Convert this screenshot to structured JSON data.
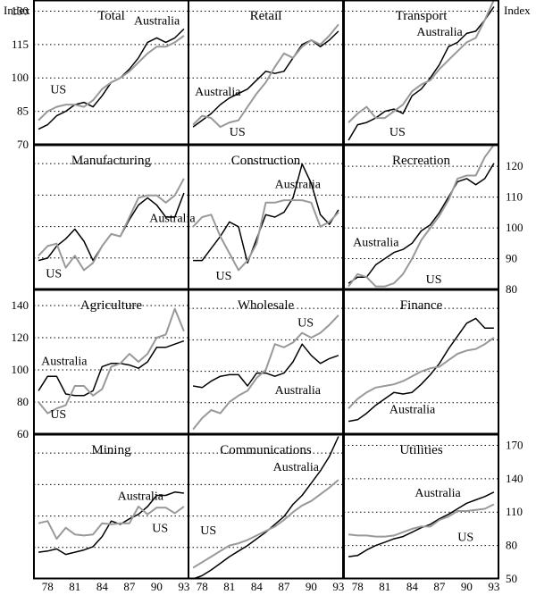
{
  "page": {
    "left_axis_label": "Index",
    "right_axis_label": "Index"
  },
  "colors": {
    "australia": "#000000",
    "us": "#999999",
    "grid": "#000000",
    "frame": "#000000"
  },
  "x_ticks": [
    "78",
    "81",
    "84",
    "87",
    "90",
    "93"
  ],
  "years": [
    1977,
    1978,
    1979,
    1980,
    1981,
    1982,
    1983,
    1984,
    1985,
    1986,
    1987,
    1988,
    1989,
    1990,
    1991,
    1992,
    1993
  ],
  "chart_data": [
    {
      "type": "line",
      "title": "Total",
      "ylim": [
        70,
        135
      ],
      "ticks": [
        70,
        85,
        100,
        115,
        130
      ],
      "tick_side": "left",
      "series": [
        {
          "name": "Australia",
          "values": [
            77,
            79,
            83,
            85,
            88,
            89,
            87,
            92,
            98,
            100,
            104,
            109,
            116,
            118,
            116,
            118,
            122
          ]
        },
        {
          "name": "US",
          "values": [
            81,
            85,
            87,
            88,
            88,
            87,
            90,
            95,
            98,
            100,
            103,
            107,
            111,
            114,
            114,
            116,
            119
          ]
        }
      ],
      "annotations": [
        {
          "text": "Australia",
          "x": 1987.5,
          "y": 124
        },
        {
          "text": "US",
          "x": 1978.3,
          "y": 93
        }
      ]
    },
    {
      "type": "line",
      "title": "Retail",
      "ylim": [
        70,
        135
      ],
      "ticks": [
        70,
        85,
        100,
        115,
        130
      ],
      "tick_side": "none",
      "series": [
        {
          "name": "Australia",
          "values": [
            78,
            81,
            84,
            88,
            91,
            93,
            95,
            99,
            103,
            102,
            103,
            109,
            115,
            117,
            114,
            117,
            121
          ]
        },
        {
          "name": "US",
          "values": [
            79,
            83,
            82,
            78,
            80,
            81,
            87,
            93,
            98,
            105,
            111,
            109,
            114,
            117,
            115,
            119,
            124
          ]
        }
      ],
      "annotations": [
        {
          "text": "Australia",
          "x": 1977.2,
          "y": 92
        },
        {
          "text": "US",
          "x": 1981,
          "y": 74
        }
      ]
    },
    {
      "type": "line",
      "title": "Transport",
      "ylim": [
        70,
        135
      ],
      "ticks": [
        70,
        85,
        100,
        115,
        130
      ],
      "tick_side": "none",
      "series": [
        {
          "name": "Australia",
          "values": [
            72,
            79,
            80,
            82,
            85,
            86,
            84,
            92,
            95,
            100,
            106,
            114,
            116,
            120,
            121,
            126,
            132
          ]
        },
        {
          "name": "US",
          "values": [
            80,
            84,
            87,
            82,
            82,
            85,
            88,
            94,
            97,
            99,
            104,
            108,
            112,
            116,
            118,
            126,
            135
          ]
        }
      ],
      "annotations": [
        {
          "text": "Australia",
          "x": 1984.5,
          "y": 119
        },
        {
          "text": "US",
          "x": 1981.5,
          "y": 74
        }
      ]
    },
    {
      "type": "line",
      "title": "Manufacturing",
      "ylim": [
        75,
        135
      ],
      "ticks": [],
      "tick_side": "none",
      "series": [
        {
          "name": "Australia",
          "values": [
            87,
            88,
            93,
            96,
            100,
            95,
            87,
            93,
            98,
            97,
            104,
            110,
            113,
            110,
            105,
            105,
            115
          ]
        },
        {
          "name": "US",
          "values": [
            89,
            93,
            94,
            84,
            89,
            83,
            86,
            93,
            98,
            97,
            105,
            113,
            114,
            114,
            111,
            114,
            121
          ]
        }
      ],
      "annotations": [
        {
          "text": "Australia",
          "x": 1989.2,
          "y": 103
        },
        {
          "text": "US",
          "x": 1977.8,
          "y": 80
        }
      ]
    },
    {
      "type": "line",
      "title": "Construction",
      "ylim": [
        75,
        135
      ],
      "ticks": [],
      "tick_side": "none",
      "series": [
        {
          "name": "Australia",
          "values": [
            87,
            87,
            92,
            97,
            103,
            101,
            86,
            96,
            106,
            105,
            107,
            113,
            127,
            119,
            106,
            102,
            108
          ]
        },
        {
          "name": "US",
          "values": [
            101,
            105,
            106,
            97,
            90,
            83,
            87,
            94,
            111,
            111,
            112,
            112,
            112,
            111,
            101,
            103,
            107
          ]
        }
      ],
      "annotations": [
        {
          "text": "Australia",
          "x": 1986,
          "y": 117
        },
        {
          "text": "US",
          "x": 1979.5,
          "y": 79
        }
      ]
    },
    {
      "type": "line",
      "title": "Recreation",
      "ylim": [
        80,
        127
      ],
      "ticks": [
        80,
        90,
        100,
        110,
        120
      ],
      "tick_side": "right",
      "series": [
        {
          "name": "Australia",
          "values": [
            82,
            84,
            84,
            88,
            90,
            92,
            93,
            95,
            99,
            101,
            105,
            110,
            115,
            116,
            114,
            116,
            121
          ]
        },
        {
          "name": "US",
          "values": [
            81,
            85,
            84,
            81,
            81,
            82,
            85,
            90,
            96,
            100,
            104,
            109,
            116,
            117,
            117,
            123,
            127
          ]
        }
      ],
      "annotations": [
        {
          "text": "Australia",
          "x": 1977.5,
          "y": 94
        },
        {
          "text": "US",
          "x": 1985.5,
          "y": 82
        }
      ]
    },
    {
      "type": "line",
      "title": "Agriculture",
      "ylim": [
        60,
        150
      ],
      "ticks": [
        60,
        80,
        100,
        120,
        140
      ],
      "tick_side": "left",
      "series": [
        {
          "name": "Australia",
          "values": [
            87,
            96,
            96,
            85,
            84,
            84,
            87,
            102,
            104,
            104,
            103,
            101,
            105,
            114,
            114,
            116,
            118
          ]
        },
        {
          "name": "US",
          "values": [
            80,
            73,
            76,
            78,
            90,
            90,
            84,
            88,
            102,
            104,
            110,
            105,
            110,
            120,
            122,
            138,
            124
          ]
        }
      ],
      "annotations": [
        {
          "text": "Australia",
          "x": 1977.3,
          "y": 103
        },
        {
          "text": "US",
          "x": 1978.3,
          "y": 70
        }
      ]
    },
    {
      "type": "line",
      "title": "Wholesale",
      "ylim": [
        60,
        150
      ],
      "ticks": [],
      "tick_side": "none",
      "series": [
        {
          "name": "Australia",
          "values": [
            90,
            89,
            93,
            96,
            97,
            97,
            90,
            98,
            98,
            96,
            98,
            105,
            116,
            109,
            104,
            107,
            109
          ]
        },
        {
          "name": "US",
          "values": [
            63,
            70,
            75,
            73,
            80,
            84,
            87,
            95,
            100,
            116,
            114,
            117,
            123,
            120,
            123,
            128,
            134
          ]
        }
      ],
      "annotations": [
        {
          "text": "Australia",
          "x": 1986,
          "y": 85
        },
        {
          "text": "US",
          "x": 1988.5,
          "y": 127
        }
      ]
    },
    {
      "type": "line",
      "title": "Finance",
      "ylim": [
        60,
        150
      ],
      "ticks": [],
      "tick_side": "none",
      "series": [
        {
          "name": "Australia",
          "values": [
            68,
            69,
            73,
            78,
            82,
            86,
            85,
            86,
            91,
            97,
            104,
            113,
            121,
            129,
            132,
            126,
            126
          ]
        },
        {
          "name": "US",
          "values": [
            76,
            82,
            86,
            89,
            90,
            91,
            93,
            96,
            99,
            101,
            102,
            106,
            110,
            112,
            113,
            116,
            120
          ]
        }
      ],
      "annotations": [
        {
          "text": "Australia",
          "x": 1981.5,
          "y": 73
        }
      ]
    },
    {
      "type": "line",
      "title": "Mining",
      "ylim": [
        50,
        180
      ],
      "ticks": [],
      "tick_side": "none",
      "series": [
        {
          "name": "Australia",
          "values": [
            74,
            75,
            77,
            72,
            74,
            76,
            79,
            88,
            102,
            99,
            104,
            108,
            115,
            125,
            125,
            128,
            127
          ]
        },
        {
          "name": "US",
          "values": [
            100,
            102,
            86,
            96,
            90,
            89,
            90,
            100,
            99,
            100,
            100,
            115,
            108,
            114,
            114,
            109,
            115
          ]
        }
      ],
      "annotations": [
        {
          "text": "Australia",
          "x": 1985.7,
          "y": 121
        },
        {
          "text": "US",
          "x": 1989.5,
          "y": 92
        }
      ]
    },
    {
      "type": "line",
      "title": "Communications",
      "ylim": [
        50,
        180
      ],
      "ticks": [],
      "tick_side": "none",
      "series": [
        {
          "name": "Australia",
          "values": [
            50,
            53,
            58,
            64,
            70,
            75,
            80,
            86,
            92,
            99,
            106,
            117,
            125,
            136,
            147,
            160,
            178
          ]
        },
        {
          "name": "US",
          "values": [
            60,
            65,
            70,
            75,
            80,
            82,
            85,
            89,
            93,
            97,
            103,
            110,
            116,
            120,
            126,
            132,
            139
          ]
        }
      ],
      "annotations": [
        {
          "text": "Australia",
          "x": 1985.8,
          "y": 147
        },
        {
          "text": "US",
          "x": 1977.8,
          "y": 90
        }
      ]
    },
    {
      "type": "line",
      "title": "Utilities",
      "ylim": [
        50,
        180
      ],
      "ticks": [
        50,
        80,
        110,
        140,
        170
      ],
      "tick_side": "right",
      "series": [
        {
          "name": "Australia",
          "values": [
            70,
            71,
            76,
            80,
            83,
            86,
            88,
            92,
            96,
            99,
            104,
            108,
            113,
            118,
            121,
            124,
            128
          ]
        },
        {
          "name": "US",
          "values": [
            90,
            89,
            89,
            88,
            88,
            89,
            92,
            95,
            97,
            97,
            103,
            106,
            111,
            111,
            112,
            113,
            117
          ]
        }
      ],
      "annotations": [
        {
          "text": "Australia",
          "x": 1984.3,
          "y": 124
        },
        {
          "text": "US",
          "x": 1989,
          "y": 84
        }
      ]
    }
  ]
}
